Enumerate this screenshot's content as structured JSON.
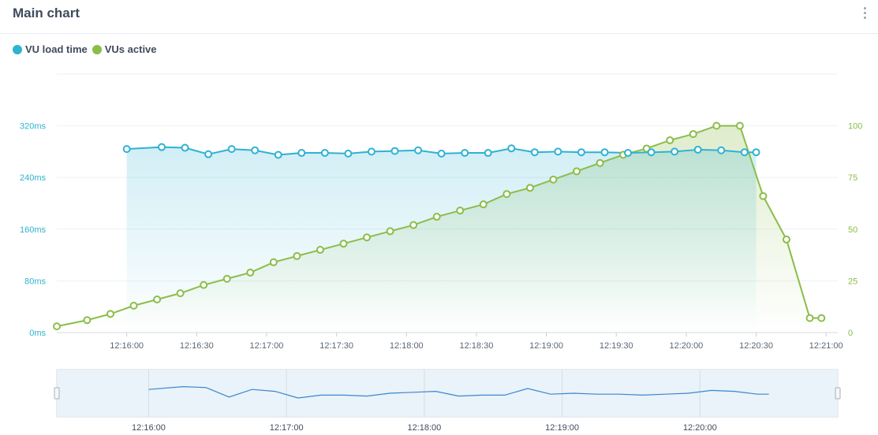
{
  "header": {
    "title": "Main chart",
    "menu_icon": "kebab-menu-icon"
  },
  "legend": [
    {
      "label": "VU load time",
      "color": "#2fb2d3"
    },
    {
      "label": "VUs active",
      "color": "#8bbd4a"
    }
  ],
  "colors": {
    "load": "#2fb2d3",
    "vus": "#8bbd4a",
    "navigator_line": "#3a86cf"
  },
  "chart_data": {
    "type": "line",
    "x_ticks": [
      "12:16:00",
      "12:16:30",
      "12:17:00",
      "12:17:30",
      "12:18:00",
      "12:18:30",
      "12:19:00",
      "12:19:30",
      "12:20:00",
      "12:20:30",
      "12:21:00"
    ],
    "y_left": {
      "ticks": [
        "0ms",
        "80ms",
        "160ms",
        "240ms",
        "320ms"
      ],
      "ylim": [
        0,
        400
      ]
    },
    "y_right": {
      "ticks": [
        "0",
        "25",
        "50",
        "75",
        "100"
      ],
      "ylim": [
        0,
        125
      ]
    },
    "series": [
      {
        "name": "VU load time",
        "axis": "left",
        "x": [
          "12:16:00",
          "12:16:15",
          "12:16:25",
          "12:16:35",
          "12:16:45",
          "12:16:55",
          "12:17:05",
          "12:17:15",
          "12:17:25",
          "12:17:35",
          "12:17:45",
          "12:17:55",
          "12:18:05",
          "12:18:15",
          "12:18:25",
          "12:18:35",
          "12:18:45",
          "12:18:55",
          "12:19:05",
          "12:19:15",
          "12:19:25",
          "12:19:35",
          "12:19:45",
          "12:19:55",
          "12:20:05",
          "12:20:15",
          "12:20:25",
          "12:20:30"
        ],
        "values": [
          284,
          287,
          286,
          276,
          284,
          282,
          275,
          278,
          278,
          277,
          280,
          281,
          282,
          277,
          278,
          278,
          285,
          279,
          280,
          279,
          279,
          278,
          279,
          280,
          283,
          282,
          279,
          279
        ]
      },
      {
        "name": "VUs active",
        "axis": "right",
        "x": [
          "12:15:30",
          "12:15:43",
          "12:15:53",
          "12:16:03",
          "12:16:13",
          "12:16:23",
          "12:16:33",
          "12:16:43",
          "12:16:53",
          "12:17:03",
          "12:17:13",
          "12:17:23",
          "12:17:33",
          "12:17:43",
          "12:17:53",
          "12:18:03",
          "12:18:13",
          "12:18:23",
          "12:18:33",
          "12:18:43",
          "12:18:53",
          "12:19:03",
          "12:19:13",
          "12:19:23",
          "12:19:33",
          "12:19:43",
          "12:19:53",
          "12:20:03",
          "12:20:13",
          "12:20:23",
          "12:20:33",
          "12:20:43",
          "12:20:53",
          "12:20:58"
        ],
        "values": [
          3,
          6,
          9,
          13,
          16,
          19,
          23,
          26,
          29,
          34,
          37,
          40,
          43,
          46,
          49,
          52,
          56,
          59,
          62,
          67,
          70,
          74,
          78,
          82,
          86,
          89,
          93,
          96,
          100,
          100,
          66,
          45,
          7,
          7
        ]
      }
    ],
    "navigator": {
      "x_ticks": [
        "12:16:00",
        "12:17:00",
        "12:18:00",
        "12:19:00",
        "12:20:00"
      ]
    }
  }
}
